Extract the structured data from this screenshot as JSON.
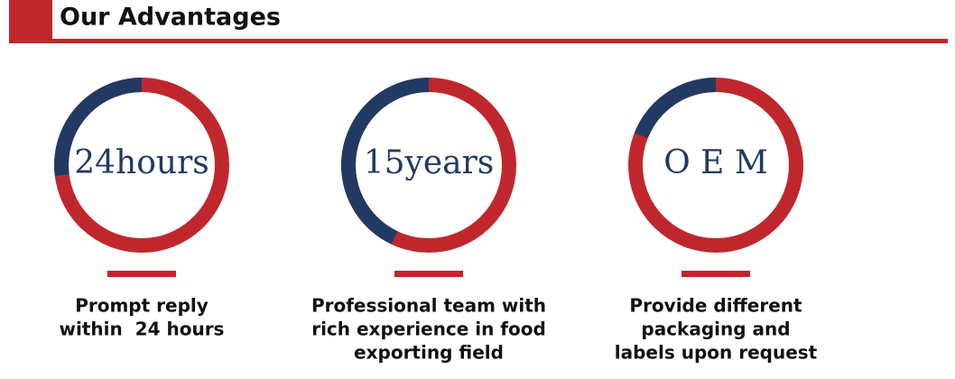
{
  "header": {
    "title": "Our Advantages"
  },
  "items": [
    {
      "label": "24hours",
      "share": 27,
      "caption": [
        "Prompt reply",
        "within  24 hours"
      ]
    },
    {
      "label": "15years",
      "share": 43,
      "caption": [
        "Professional team with",
        "rich experience in food",
        "exporting field"
      ]
    },
    {
      "label": "O E M",
      "share": 19,
      "caption": [
        "Provide different",
        "packaging and",
        "labels upon request"
      ]
    }
  ]
}
